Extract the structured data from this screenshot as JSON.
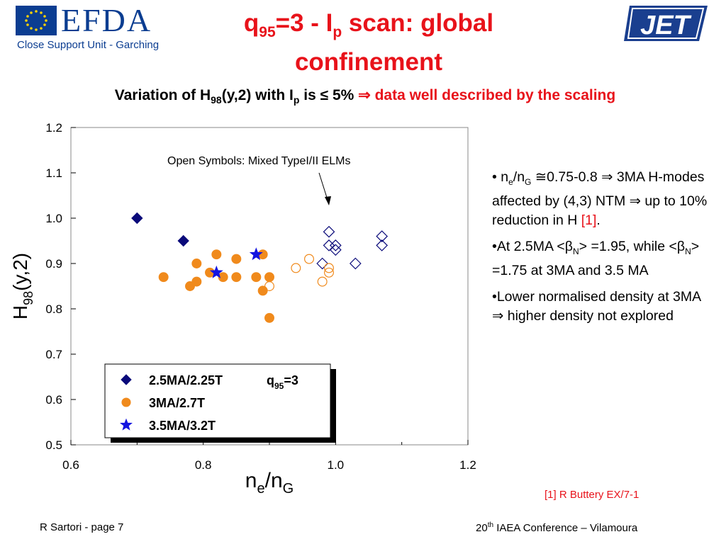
{
  "header": {
    "efda_name": "EFDA",
    "efda_sub": "Close Support Unit - Garching",
    "jet_logo": "JET"
  },
  "title": {
    "q_sub": "95",
    "p_sub": "p",
    "part1": "=3 - I",
    "part2": " scan: global confinement"
  },
  "subtitle": {
    "lead": "Variation of H",
    "h_sub": "98",
    "mid": "(y,2)  with I",
    "p_sub": "p",
    "tail": " is ≤ 5% ",
    "arrow": "⇒",
    "conclusion": " data well described by the scaling"
  },
  "bullets": [
    {
      "text_a": "• n",
      "sub_e": "e",
      "text_b": "/n",
      "sub_g": "G",
      "text_c": " ≅0.75-0.8 ⇒ 3MA H-modes affected by (4,3) NTM ⇒ up to 10% reduction in H ",
      "ref": "[1]",
      "end": "."
    },
    {
      "text": "•At 2.5MA <βN> =1.95, while <βN> =1.75 at 3MA and 3.5 MA"
    },
    {
      "text": "•Lower normalised density at 3MA ⇒ higher density not explored"
    }
  ],
  "reference": "[1] R Buttery EX/7-1",
  "footer": {
    "left": "R Sartori  - page 7",
    "right_num": "20",
    "right_sup": "th",
    "right_rest": " IAEA Conference – Vilamoura"
  },
  "chart_data": {
    "type": "scatter",
    "xlabel": "ne/nG",
    "ylabel": "H98(y,2)",
    "xlim": [
      0.6,
      1.2
    ],
    "ylim": [
      0.5,
      1.2
    ],
    "xticks": [
      "0.6",
      "0.8",
      "1.0",
      "1.2"
    ],
    "yticks": [
      "0.5",
      "0.6",
      "0.7",
      "0.8",
      "0.9",
      "1.0",
      "1.1",
      "1.2"
    ],
    "annotation": "Open Symbols: Mixed TypeI/II ELMs",
    "legend_q": "q95=3",
    "series": [
      {
        "name": "2.5MA/2.25T",
        "marker": "diamond",
        "color": "#0a0a7a",
        "filled": [
          [
            0.7,
            1.0
          ],
          [
            0.77,
            0.95
          ]
        ],
        "open": [
          [
            0.99,
            0.97
          ],
          [
            0.99,
            0.94
          ],
          [
            1.0,
            0.94
          ],
          [
            1.0,
            0.93
          ],
          [
            0.98,
            0.9
          ],
          [
            1.03,
            0.9
          ],
          [
            1.07,
            0.96
          ],
          [
            1.07,
            0.94
          ]
        ]
      },
      {
        "name": "3MA/2.7T",
        "marker": "circle",
        "color": "#f08a1c",
        "filled": [
          [
            0.74,
            0.87
          ],
          [
            0.78,
            0.85
          ],
          [
            0.79,
            0.86
          ],
          [
            0.79,
            0.9
          ],
          [
            0.81,
            0.88
          ],
          [
            0.82,
            0.92
          ],
          [
            0.83,
            0.87
          ],
          [
            0.85,
            0.91
          ],
          [
            0.85,
            0.87
          ],
          [
            0.88,
            0.87
          ],
          [
            0.89,
            0.92
          ],
          [
            0.89,
            0.84
          ],
          [
            0.9,
            0.87
          ],
          [
            0.9,
            0.78
          ]
        ],
        "open": [
          [
            0.9,
            0.85
          ],
          [
            0.94,
            0.89
          ],
          [
            0.96,
            0.91
          ],
          [
            0.98,
            0.86
          ],
          [
            0.99,
            0.88
          ],
          [
            0.99,
            0.89
          ]
        ]
      },
      {
        "name": "3.5MA/3.2T",
        "marker": "star",
        "color": "#1414e0",
        "filled": [
          [
            0.82,
            0.88
          ],
          [
            0.88,
            0.92
          ]
        ],
        "open": []
      }
    ]
  }
}
